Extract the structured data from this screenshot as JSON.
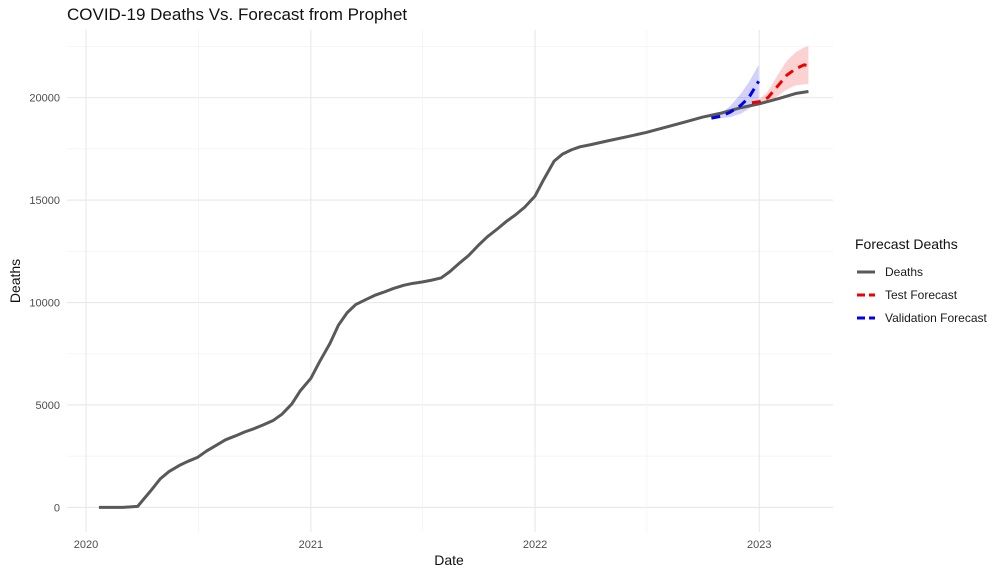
{
  "chart_data": {
    "type": "line",
    "title": "COVID-19 Deaths Vs. Forecast from Prophet",
    "xlabel": "Date",
    "ylabel": "Deaths",
    "x_ticks": [
      "2020",
      "2021",
      "2022",
      "2023"
    ],
    "y_ticks": [
      0,
      5000,
      10000,
      15000,
      20000
    ],
    "xlim": [
      "2019-12-01",
      "2023-05-01"
    ],
    "ylim": [
      -1200,
      23300
    ],
    "grid": true,
    "legend_title": "Forecast Deaths",
    "legend_position": "right",
    "series": [
      {
        "name": "Deaths",
        "color": "#595959",
        "style": "solid",
        "x": [
          "2020-01-22",
          "2020-03-01",
          "2020-03-25",
          "2020-04-01",
          "2020-04-15",
          "2020-05-01",
          "2020-05-15",
          "2020-06-01",
          "2020-06-15",
          "2020-07-01",
          "2020-07-15",
          "2020-08-01",
          "2020-08-15",
          "2020-09-01",
          "2020-09-15",
          "2020-10-01",
          "2020-10-15",
          "2020-11-01",
          "2020-11-15",
          "2020-12-01",
          "2020-12-15",
          "2021-01-01",
          "2021-01-15",
          "2021-02-01",
          "2021-02-15",
          "2021-03-01",
          "2021-03-15",
          "2021-04-01",
          "2021-04-15",
          "2021-05-01",
          "2021-05-15",
          "2021-06-01",
          "2021-06-15",
          "2021-07-01",
          "2021-07-15",
          "2021-08-01",
          "2021-08-15",
          "2021-09-01",
          "2021-09-15",
          "2021-10-01",
          "2021-10-15",
          "2021-11-01",
          "2021-11-15",
          "2021-12-01",
          "2021-12-15",
          "2022-01-01",
          "2022-01-15",
          "2022-02-01",
          "2022-02-15",
          "2022-03-01",
          "2022-03-15",
          "2022-04-01",
          "2022-05-01",
          "2022-06-01",
          "2022-07-01",
          "2022-08-01",
          "2022-09-01",
          "2022-10-01",
          "2022-11-01",
          "2022-12-01",
          "2023-01-01",
          "2023-02-01",
          "2023-03-01",
          "2023-03-22"
        ],
        "y": [
          0,
          0,
          50,
          300,
          800,
          1400,
          1750,
          2050,
          2250,
          2450,
          2750,
          3050,
          3300,
          3500,
          3680,
          3850,
          4020,
          4250,
          4550,
          5050,
          5700,
          6300,
          7100,
          8000,
          8900,
          9500,
          9900,
          10150,
          10350,
          10520,
          10680,
          10840,
          10930,
          11000,
          11080,
          11200,
          11500,
          11950,
          12300,
          12800,
          13200,
          13600,
          13950,
          14300,
          14650,
          15200,
          16000,
          16900,
          17250,
          17450,
          17600,
          17700,
          17900,
          18100,
          18300,
          18550,
          18800,
          19050,
          19250,
          19500,
          19700,
          19950,
          20200,
          20300
        ]
      },
      {
        "name": "Test Forecast",
        "color": "#ee0000",
        "style": "dashed",
        "x": [
          "2022-12-20",
          "2023-01-01",
          "2023-01-15",
          "2023-02-01",
          "2023-02-15",
          "2023-03-01",
          "2023-03-15",
          "2023-03-22"
        ],
        "y": [
          19750,
          19800,
          20000,
          20600,
          21100,
          21400,
          21600,
          21550
        ],
        "lower": [
          19700,
          19700,
          19750,
          20100,
          20400,
          20600,
          20650,
          20650
        ],
        "upper": [
          19800,
          19900,
          20300,
          21150,
          21800,
          22200,
          22450,
          22500
        ]
      },
      {
        "name": "Validation Forecast",
        "color": "#0000ee",
        "style": "dashed",
        "x": [
          "2022-10-15",
          "2022-11-01",
          "2022-11-15",
          "2022-12-01",
          "2022-12-15",
          "2022-12-31"
        ],
        "y": [
          19000,
          19100,
          19300,
          19600,
          20000,
          20800
        ],
        "lower": [
          18950,
          19000,
          19050,
          19200,
          19450,
          19800
        ],
        "upper": [
          19100,
          19250,
          19600,
          20150,
          20750,
          21600
        ]
      }
    ]
  }
}
